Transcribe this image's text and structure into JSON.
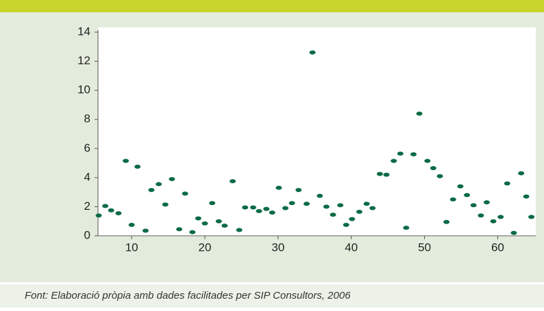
{
  "chart_data": {
    "type": "scatter",
    "x": [
      5.5,
      6.4,
      7.2,
      8.2,
      9.2,
      10,
      10.8,
      11.9,
      12.7,
      13.7,
      14.6,
      15.5,
      16.5,
      17.3,
      18.3,
      19.1,
      20.0,
      21.0,
      21.9,
      22.7,
      23.8,
      24.7,
      25.5,
      26.6,
      27.4,
      28.4,
      29.2,
      30.1,
      31.0,
      31.9,
      32.8,
      33.9,
      34.7,
      35.7,
      36.6,
      37.5,
      38.5,
      39.3,
      40.1,
      41.1,
      42.1,
      42.9,
      43.9,
      44.8,
      45.8,
      46.7,
      47.5,
      48.5,
      49.3,
      50.4,
      51.2,
      52.1,
      53.0,
      53.9,
      54.9,
      55.8,
      56.7,
      57.7,
      58.5,
      59.4,
      60.4,
      61.3,
      62.2,
      63.2,
      63.9,
      64.6
    ],
    "values": [
      1.4,
      2.05,
      1.75,
      1.55,
      5.15,
      0.75,
      4.75,
      0.35,
      3.15,
      3.55,
      2.15,
      3.9,
      0.45,
      2.9,
      0.25,
      1.2,
      0.85,
      2.25,
      1.0,
      0.7,
      3.75,
      0.4,
      1.95,
      1.95,
      1.7,
      1.85,
      1.6,
      3.3,
      1.9,
      2.25,
      3.15,
      2.2,
      12.6,
      2.75,
      2.0,
      1.45,
      2.1,
      0.75,
      1.15,
      1.65,
      2.2,
      1.9,
      4.25,
      4.2,
      5.15,
      5.65,
      0.55,
      5.6,
      8.4,
      5.15,
      4.65,
      4.1,
      0.95,
      2.5,
      3.4,
      2.8,
      2.1,
      1.4,
      2.3,
      1.0,
      1.3,
      3.6,
      0.2,
      4.3,
      2.7,
      1.3
    ],
    "color": "#0b6b45",
    "xlim": [
      5.4,
      65.2
    ],
    "xticks": [
      10,
      20,
      30,
      40,
      50,
      60
    ],
    "ylim": [
      0,
      14
    ],
    "yticks": [
      0,
      2,
      4,
      6,
      8,
      10,
      12,
      14
    ]
  },
  "source": "Font: Elaboració pròpia amb dades facilitades per SIP Consultors, 2006"
}
